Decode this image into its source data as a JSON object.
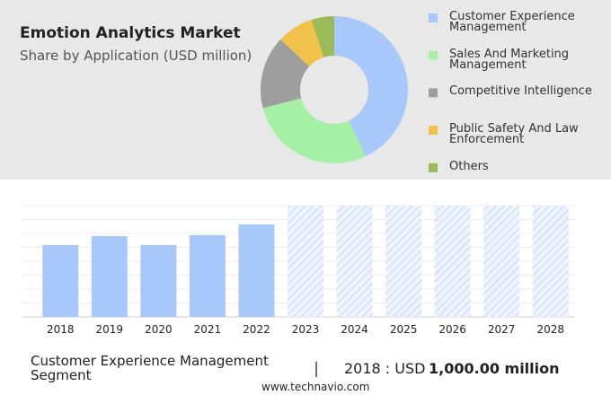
{
  "chart_data": [
    {
      "type": "pie",
      "title": "Emotion Analytics Market",
      "subtitle": "Share by Application (USD million)",
      "categories": [
        "Customer Experience Management",
        "Sales And Marketing Management",
        "Competitive Intelligence",
        "Public Safety And Law Enforcement",
        "Others"
      ],
      "values": [
        43,
        28,
        16,
        8,
        5
      ],
      "colors": [
        "#a8c8fb",
        "#a6f0a6",
        "#9e9e9e",
        "#f0c24a",
        "#9bbb59"
      ]
    },
    {
      "type": "bar",
      "categories": [
        "2018",
        "2019",
        "2020",
        "2021",
        "2022",
        "2023",
        "2024",
        "2025",
        "2026",
        "2027",
        "2028"
      ],
      "values": [
        1000,
        1125,
        1000,
        1138,
        1288,
        null,
        null,
        null,
        null,
        null,
        null
      ],
      "color": "#a8c8fb",
      "ylim": [
        0,
        1550
      ]
    }
  ],
  "footer": {
    "segment": "Customer Experience Management Segment",
    "year_text": "2018 : USD",
    "value_text": "1,000.00 million",
    "source": "www.technavio.com"
  }
}
